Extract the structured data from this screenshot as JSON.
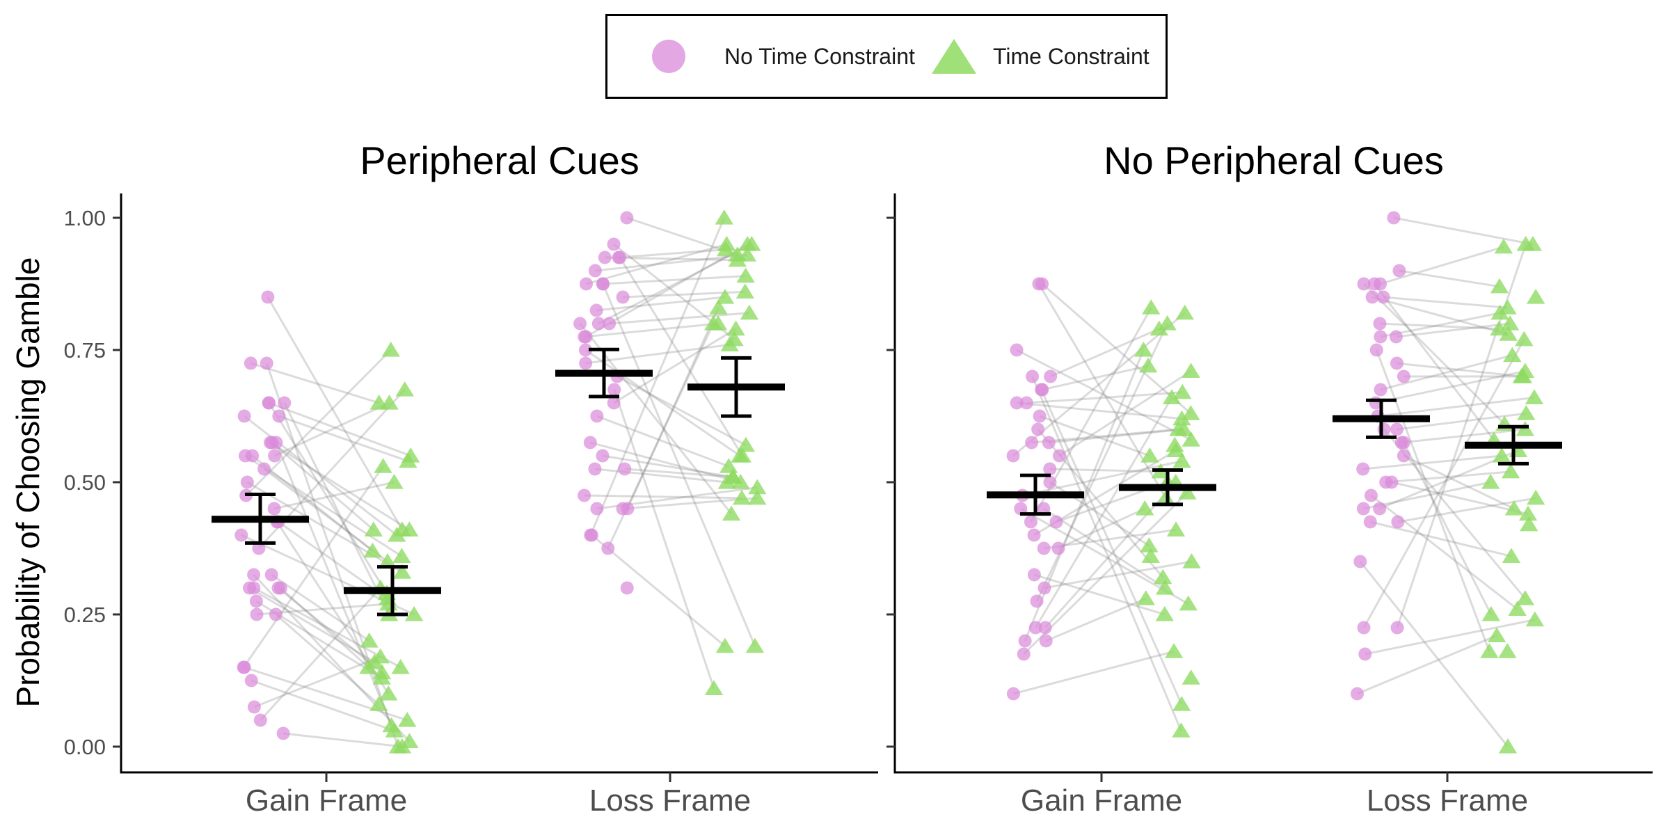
{
  "chart_data": {
    "type": "scatter",
    "ylabel": "Probability of Choosing Gamble",
    "ylim": [
      0,
      1
    ],
    "yticks": [
      "0.00",
      "0.25",
      "0.50",
      "0.75",
      "1.00"
    ],
    "categories": [
      "Gain Frame",
      "Loss Frame"
    ],
    "legend": {
      "position": "top",
      "entries": [
        {
          "label": "No Time Constraint",
          "color": "#D98AD9",
          "shape": "circle"
        },
        {
          "label": "Time Constraint",
          "color": "#8EDB62",
          "shape": "triangle"
        }
      ]
    },
    "panels": [
      {
        "title": "Peripheral Cues",
        "summary": [
          {
            "category": "Gain Frame",
            "series": "No Time Constraint",
            "mean": 0.43,
            "lower": 0.385,
            "upper": 0.477
          },
          {
            "category": "Gain Frame",
            "series": "Time Constraint",
            "mean": 0.295,
            "lower": 0.25,
            "upper": 0.34
          },
          {
            "category": "Loss Frame",
            "series": "No Time Constraint",
            "mean": 0.706,
            "lower": 0.662,
            "upper": 0.751
          },
          {
            "category": "Loss Frame",
            "series": "Time Constraint",
            "mean": 0.68,
            "lower": 0.625,
            "upper": 0.735
          }
        ],
        "gain_no_time": [
          0.85,
          0.725,
          0.725,
          0.65,
          0.65,
          0.65,
          0.625,
          0.625,
          0.575,
          0.575,
          0.575,
          0.55,
          0.55,
          0.55,
          0.525,
          0.5,
          0.475,
          0.45,
          0.425,
          0.425,
          0.4,
          0.375,
          0.325,
          0.325,
          0.3,
          0.3,
          0.3,
          0.3,
          0.275,
          0.25,
          0.25,
          0.15,
          0.15,
          0.125,
          0.075,
          0.05,
          0.025
        ],
        "gain_time": [
          0.75,
          0.675,
          0.65,
          0.65,
          0.55,
          0.54,
          0.53,
          0.5,
          0.41,
          0.41,
          0.41,
          0.4,
          0.37,
          0.36,
          0.35,
          0.33,
          0.3,
          0.29,
          0.28,
          0.27,
          0.25,
          0.25,
          0.2,
          0.17,
          0.16,
          0.15,
          0.15,
          0.14,
          0.13,
          0.1,
          0.08,
          0.05,
          0.04,
          0.03,
          0.01,
          0.0,
          0.0
        ],
        "loss_no_time": [
          1.0,
          0.95,
          0.925,
          0.925,
          0.925,
          0.9,
          0.875,
          0.875,
          0.875,
          0.85,
          0.825,
          0.8,
          0.8,
          0.8,
          0.775,
          0.775,
          0.75,
          0.725,
          0.7,
          0.675,
          0.65,
          0.625,
          0.575,
          0.55,
          0.525,
          0.525,
          0.475,
          0.45,
          0.45,
          0.45,
          0.4,
          0.4,
          0.375,
          0.3
        ],
        "loss_time": [
          1.0,
          0.95,
          0.95,
          0.95,
          0.94,
          0.93,
          0.93,
          0.92,
          0.89,
          0.86,
          0.85,
          0.83,
          0.82,
          0.8,
          0.8,
          0.79,
          0.77,
          0.76,
          0.57,
          0.55,
          0.55,
          0.53,
          0.51,
          0.51,
          0.5,
          0.5,
          0.49,
          0.47,
          0.47,
          0.44,
          0.19,
          0.19,
          0.11
        ]
      },
      {
        "title": "No Peripheral Cues",
        "summary": [
          {
            "category": "Gain Frame",
            "series": "No Time Constraint",
            "mean": 0.476,
            "lower": 0.44,
            "upper": 0.513
          },
          {
            "category": "Gain Frame",
            "series": "Time Constraint",
            "mean": 0.49,
            "lower": 0.458,
            "upper": 0.523
          },
          {
            "category": "Loss Frame",
            "series": "No Time Constraint",
            "mean": 0.62,
            "lower": 0.585,
            "upper": 0.655
          },
          {
            "category": "Loss Frame",
            "series": "Time Constraint",
            "mean": 0.57,
            "lower": 0.535,
            "upper": 0.605
          }
        ],
        "gain_no_time": [
          0.875,
          0.875,
          0.75,
          0.7,
          0.7,
          0.675,
          0.675,
          0.65,
          0.65,
          0.625,
          0.6,
          0.575,
          0.575,
          0.55,
          0.55,
          0.525,
          0.5,
          0.475,
          0.45,
          0.45,
          0.425,
          0.425,
          0.4,
          0.375,
          0.375,
          0.325,
          0.3,
          0.275,
          0.225,
          0.225,
          0.2,
          0.2,
          0.175,
          0.1
        ],
        "gain_time": [
          0.83,
          0.82,
          0.8,
          0.79,
          0.75,
          0.72,
          0.71,
          0.67,
          0.66,
          0.63,
          0.62,
          0.6,
          0.6,
          0.58,
          0.57,
          0.56,
          0.55,
          0.54,
          0.52,
          0.5,
          0.5,
          0.48,
          0.47,
          0.45,
          0.41,
          0.38,
          0.36,
          0.35,
          0.32,
          0.3,
          0.28,
          0.27,
          0.25,
          0.18,
          0.13,
          0.08,
          0.03
        ],
        "loss_no_time": [
          1.0,
          0.9,
          0.875,
          0.875,
          0.875,
          0.85,
          0.85,
          0.8,
          0.775,
          0.775,
          0.75,
          0.725,
          0.7,
          0.675,
          0.65,
          0.625,
          0.6,
          0.6,
          0.575,
          0.575,
          0.55,
          0.525,
          0.5,
          0.5,
          0.475,
          0.45,
          0.45,
          0.425,
          0.425,
          0.35,
          0.225,
          0.225,
          0.175,
          0.1
        ],
        "loss_time": [
          0.95,
          0.945,
          0.95,
          0.87,
          0.85,
          0.83,
          0.82,
          0.8,
          0.79,
          0.78,
          0.77,
          0.74,
          0.71,
          0.7,
          0.7,
          0.66,
          0.63,
          0.61,
          0.6,
          0.58,
          0.56,
          0.55,
          0.52,
          0.5,
          0.47,
          0.45,
          0.44,
          0.42,
          0.36,
          0.28,
          0.26,
          0.25,
          0.24,
          0.21,
          0.18,
          0.18,
          0.0
        ]
      }
    ]
  }
}
